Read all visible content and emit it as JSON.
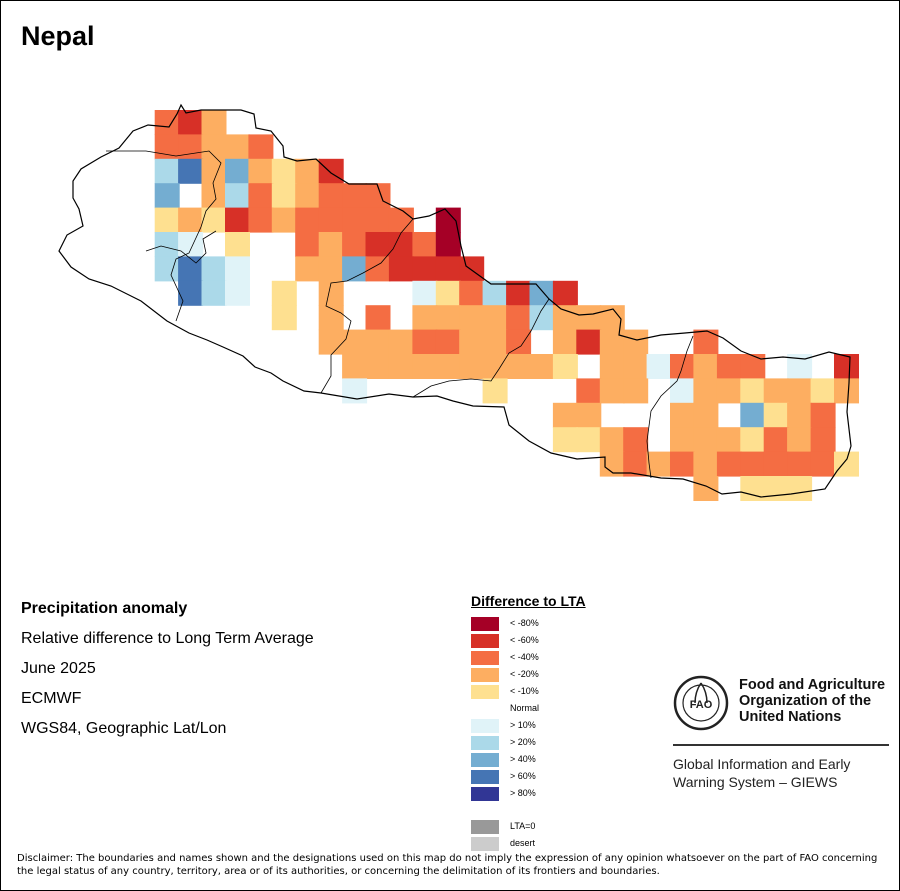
{
  "map_title": "Nepal",
  "info": {
    "heading": "Precipitation anomaly",
    "subtitle": "Relative difference to Long Term Average",
    "period": "June 2025",
    "source": "ECMWF",
    "projection": "WGS84, Geographic Lat/Lon"
  },
  "legend": {
    "title": "Difference to LTA",
    "items": [
      {
        "label": "< -80%",
        "color": "#a50026"
      },
      {
        "label": "< -60%",
        "color": "#d73027"
      },
      {
        "label": "< -40%",
        "color": "#f46d43"
      },
      {
        "label": "< -20%",
        "color": "#fdae61"
      },
      {
        "label": "< -10%",
        "color": "#fee090"
      },
      {
        "label": "Normal",
        "color": "#ffffff"
      },
      {
        "label": "> 10%",
        "color": "#e0f3f8"
      },
      {
        "label": "> 20%",
        "color": "#abd9e9"
      },
      {
        "label": "> 40%",
        "color": "#74add1"
      },
      {
        "label": "> 60%",
        "color": "#4575b4"
      },
      {
        "label": "> 80%",
        "color": "#313695"
      }
    ],
    "extra": [
      {
        "label": "LTA=0",
        "color": "#999999"
      },
      {
        "label": "desert",
        "color": "#cccccc"
      }
    ]
  },
  "fao": {
    "logo_text": "FAO",
    "org_line1": "Food and Agriculture",
    "org_line2": "Organization of the",
    "org_line3": "United Nations",
    "giews_line1": "Global Information and Early",
    "giews_line2": "Warning System – GIEWS"
  },
  "disclaimer": "Disclaimer: The boundaries and names shown and the designations used on this map do not imply the expression of any opinion whatsoever on the part of FAO concerning the legal status of any country, territory, area or of its authorities, or concerning the delimitation of its frontiers and boundaries.",
  "map_grid": {
    "classes": {
      "R8": "#a50026",
      "R6": "#d73027",
      "R4": "#f46d43",
      "R2": "#fdae61",
      "R1": "#fee090",
      "B1": "#e0f3f8",
      "B2": "#abd9e9",
      "B4": "#74add1",
      "B6": "#4575b4",
      "B8": "#313695"
    },
    "rows": [
      [
        "R4",
        "R6",
        "R2",
        "",
        "",
        "",
        "",
        "",
        "",
        "",
        "",
        "",
        "",
        "",
        "",
        "",
        "",
        "",
        "",
        "",
        "",
        "",
        "",
        "",
        "",
        "",
        "",
        "",
        "",
        "",
        "",
        ""
      ],
      [
        "R4",
        "R4",
        "R2",
        "R2",
        "R4",
        "",
        "",
        "",
        "",
        "",
        "",
        "",
        "",
        "",
        "",
        "",
        "",
        "",
        "",
        "",
        "",
        "",
        "",
        "",
        "",
        "",
        "",
        "",
        "",
        "",
        "",
        ""
      ],
      [
        "B2",
        "B6",
        "R2",
        "B4",
        "R2",
        "R1",
        "R2",
        "R6",
        "",
        "",
        "",
        "",
        "",
        "",
        "",
        "",
        "",
        "",
        "",
        "",
        "",
        "",
        "",
        "",
        "",
        "",
        "",
        "",
        "",
        "",
        "",
        ""
      ],
      [
        "B4",
        "",
        "R2",
        "B2",
        "R4",
        "R1",
        "R2",
        "R4",
        "R4",
        "R4",
        "",
        "",
        "",
        "",
        "",
        "",
        "",
        "",
        "",
        "",
        "",
        "",
        "",
        "",
        "",
        "",
        "",
        "",
        "",
        "",
        "",
        ""
      ],
      [
        "R1",
        "R2",
        "R1",
        "R6",
        "R4",
        "R2",
        "R4",
        "R4",
        "R4",
        "R4",
        "R4",
        "",
        "R8",
        "",
        "",
        "",
        "",
        "",
        "",
        "",
        "",
        "",
        "",
        "",
        "",
        "",
        "",
        "",
        "",
        "",
        "",
        ""
      ],
      [
        "B2",
        "B1",
        "",
        "R1",
        "",
        "",
        "R4",
        "R2",
        "R4",
        "R6",
        "R6",
        "R4",
        "R8",
        "",
        "",
        "",
        "",
        "",
        "",
        "",
        "",
        "",
        "",
        "",
        "",
        "",
        "",
        "",
        "",
        "",
        "",
        ""
      ],
      [
        "B2",
        "B6",
        "B2",
        "B1",
        "",
        "",
        "R2",
        "R2",
        "B4",
        "R4",
        "R6",
        "R6",
        "R6",
        "R6",
        "",
        "",
        "",
        "",
        "",
        "",
        "",
        "",
        "",
        "",
        "",
        "",
        "",
        "",
        "",
        "",
        "",
        ""
      ],
      [
        "",
        "B6",
        "B2",
        "B1",
        "",
        "R1",
        "",
        "R2",
        "",
        "",
        "",
        "B1",
        "R1",
        "R4",
        "B2",
        "R6",
        "B4",
        "R6",
        "",
        "",
        "",
        "",
        "",
        "",
        "",
        "",
        "",
        "",
        "",
        "",
        "",
        ""
      ],
      [
        "",
        "",
        "",
        "",
        "",
        "R1",
        "",
        "R2",
        "",
        "R4",
        "",
        "R2",
        "R2",
        "R2",
        "R2",
        "R4",
        "B2",
        "R2",
        "R2",
        "R2",
        "",
        "",
        "",
        "",
        "",
        "",
        "",
        "",
        "",
        "",
        "",
        ""
      ],
      [
        "",
        "",
        "",
        "",
        "",
        "",
        "",
        "R2",
        "R2",
        "R2",
        "R2",
        "R4",
        "R4",
        "R2",
        "R2",
        "R4",
        "",
        "R2",
        "R6",
        "R2",
        "R2",
        "",
        "",
        "R4",
        "",
        "",
        "",
        "",
        "",
        "",
        "",
        ""
      ],
      [
        "",
        "",
        "",
        "",
        "",
        "",
        "",
        "",
        "R2",
        "R2",
        "R2",
        "R2",
        "R2",
        "R2",
        "R2",
        "R2",
        "R2",
        "R1",
        "",
        "R2",
        "R2",
        "B1",
        "R4",
        "R2",
        "R4",
        "R4",
        "",
        "B1",
        "",
        "R6",
        "",
        ""
      ],
      [
        "",
        "",
        "",
        "",
        "",
        "",
        "",
        "",
        "B1",
        "",
        "",
        "",
        "",
        "",
        "R1",
        "",
        "",
        "",
        "R4",
        "R2",
        "R2",
        "",
        "B1",
        "R2",
        "R2",
        "R1",
        "R2",
        "R2",
        "R1",
        "R2",
        "",
        ""
      ],
      [
        "",
        "",
        "",
        "",
        "",
        "",
        "",
        "",
        "",
        "",
        "",
        "",
        "",
        "",
        "",
        "",
        "",
        "R2",
        "R2",
        "",
        "",
        "",
        "R2",
        "R2",
        "",
        "B4",
        "R1",
        "R2",
        "R4",
        "",
        ""
      ],
      [
        "",
        "",
        "",
        "",
        "",
        "",
        "",
        "",
        "",
        "",
        "",
        "",
        "",
        "",
        "",
        "",
        "",
        "R1",
        "R1",
        "R2",
        "R4",
        "",
        "R2",
        "R2",
        "R2",
        "R1",
        "R4",
        "R2",
        "R4",
        "",
        ""
      ],
      [
        "",
        "",
        "",
        "",
        "",
        "",
        "",
        "",
        "",
        "",
        "",
        "",
        "",
        "",
        "",
        "",
        "",
        "",
        "",
        "R2",
        "R4",
        "R2",
        "R4",
        "R2",
        "R4",
        "R4",
        "R4",
        "R4",
        "R4",
        "R1",
        "",
        ""
      ],
      [
        "",
        "",
        "",
        "",
        "",
        "",
        "",
        "",
        "",
        "",
        "",
        "",
        "",
        "",
        "",
        "",
        "",
        "",
        "",
        "",
        "",
        "",
        "",
        "R2",
        "",
        "R1",
        "R1",
        "R1",
        "",
        "",
        "",
        ""
      ]
    ]
  }
}
